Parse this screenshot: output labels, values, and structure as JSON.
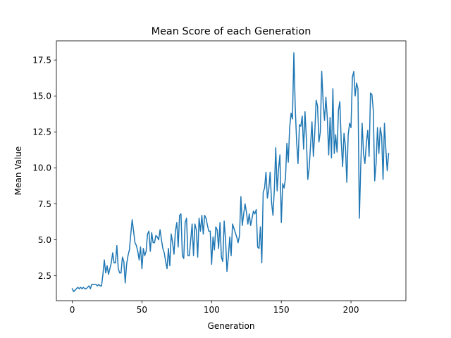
{
  "chart_data": {
    "type": "line",
    "title": "Mean Score of each Generation",
    "xlabel": "Generation",
    "ylabel": "Mean Value",
    "xlim": [
      -11.4,
      239.4
    ],
    "ylim": [
      0.77,
      18.83
    ],
    "xticks": [
      0,
      50,
      100,
      150,
      200
    ],
    "xtick_labels": [
      "0",
      "50",
      "100",
      "150",
      "200"
    ],
    "yticks": [
      2.5,
      5.0,
      7.5,
      10.0,
      12.5,
      15.0,
      17.5
    ],
    "ytick_labels": [
      "2.5",
      "5.0",
      "7.5",
      "10.0",
      "12.5",
      "15.0",
      "17.5"
    ],
    "grid": false,
    "legend": "none",
    "series": [
      {
        "color": "#1f77b4",
        "x_start": 0,
        "x_step": 1,
        "values": [
          1.6,
          1.4,
          1.5,
          1.6,
          1.7,
          1.6,
          1.7,
          1.6,
          1.7,
          1.6,
          1.6,
          1.7,
          1.8,
          1.6,
          1.9,
          1.9,
          1.9,
          1.9,
          1.8,
          1.9,
          1.8,
          1.8,
          2.6,
          3.6,
          2.7,
          3.2,
          2.6,
          3.0,
          3.4,
          4.1,
          3.4,
          3.4,
          4.6,
          3.0,
          2.7,
          2.7,
          3.8,
          3.5,
          2.0,
          3.3,
          3.9,
          4.3,
          5.4,
          6.4,
          5.6,
          4.8,
          4.6,
          4.2,
          3.6,
          4.5,
          3.0,
          4.4,
          3.9,
          4.2,
          5.4,
          5.6,
          4.2,
          5.5,
          4.8,
          4.8,
          5.3,
          5.2,
          5.0,
          5.7,
          5.0,
          4.4,
          4.1,
          3.5,
          3.0,
          4.4,
          3.2,
          5.4,
          4.8,
          4.0,
          5.6,
          6.2,
          4.5,
          6.7,
          6.8,
          3.9,
          3.7,
          6.2,
          6.5,
          3.9,
          3.9,
          5.0,
          6.1,
          3.9,
          6.1,
          5.7,
          3.8,
          6.5,
          5.6,
          6.7,
          5.4,
          6.7,
          6.5,
          6.0,
          5.6,
          5.6,
          3.3,
          5.2,
          4.3,
          5.9,
          5.7,
          4.4,
          6.2,
          3.8,
          3.5,
          6.3,
          5.0,
          2.8,
          3.8,
          5.2,
          3.9,
          6.1,
          5.8,
          5.5,
          5.2,
          4.8,
          5.3,
          8.0,
          6.0,
          6.8,
          7.5,
          6.9,
          6.1,
          6.8,
          6.0,
          6.5,
          7.0,
          6.8,
          7.1,
          4.5,
          4.4,
          5.9,
          3.4,
          8.3,
          8.6,
          9.7,
          7.9,
          8.5,
          9.7,
          7.6,
          6.7,
          8.5,
          11.4,
          8.4,
          9.9,
          10.9,
          6.2,
          8.9,
          8.6,
          9.3,
          11.7,
          10.4,
          12.8,
          13.8,
          13.4,
          18.0,
          14.2,
          11.8,
          10.3,
          13.0,
          12.9,
          13.6,
          11.3,
          13.9,
          12.0,
          9.2,
          10.0,
          11.6,
          13.2,
          10.8,
          12.4,
          14.7,
          14.3,
          11.8,
          12.5,
          16.7,
          14.6,
          13.3,
          14.9,
          13.5,
          10.9,
          13.5,
          10.7,
          15.5,
          11.0,
          12.3,
          11.1,
          14.0,
          14.6,
          11.8,
          10.1,
          12.4,
          11.5,
          9.0,
          12.3,
          13.1,
          12.8,
          16.3,
          16.7,
          15.0,
          15.9,
          15.5,
          6.5,
          10.1,
          13.1,
          11.0,
          10.3,
          11.7,
          12.6,
          10.8,
          15.2,
          15.1,
          14.0,
          9.1,
          10.3,
          12.8,
          11.0,
          12.8,
          12.2,
          9.2,
          13.1,
          11.3,
          9.8,
          11.0
        ]
      }
    ]
  }
}
